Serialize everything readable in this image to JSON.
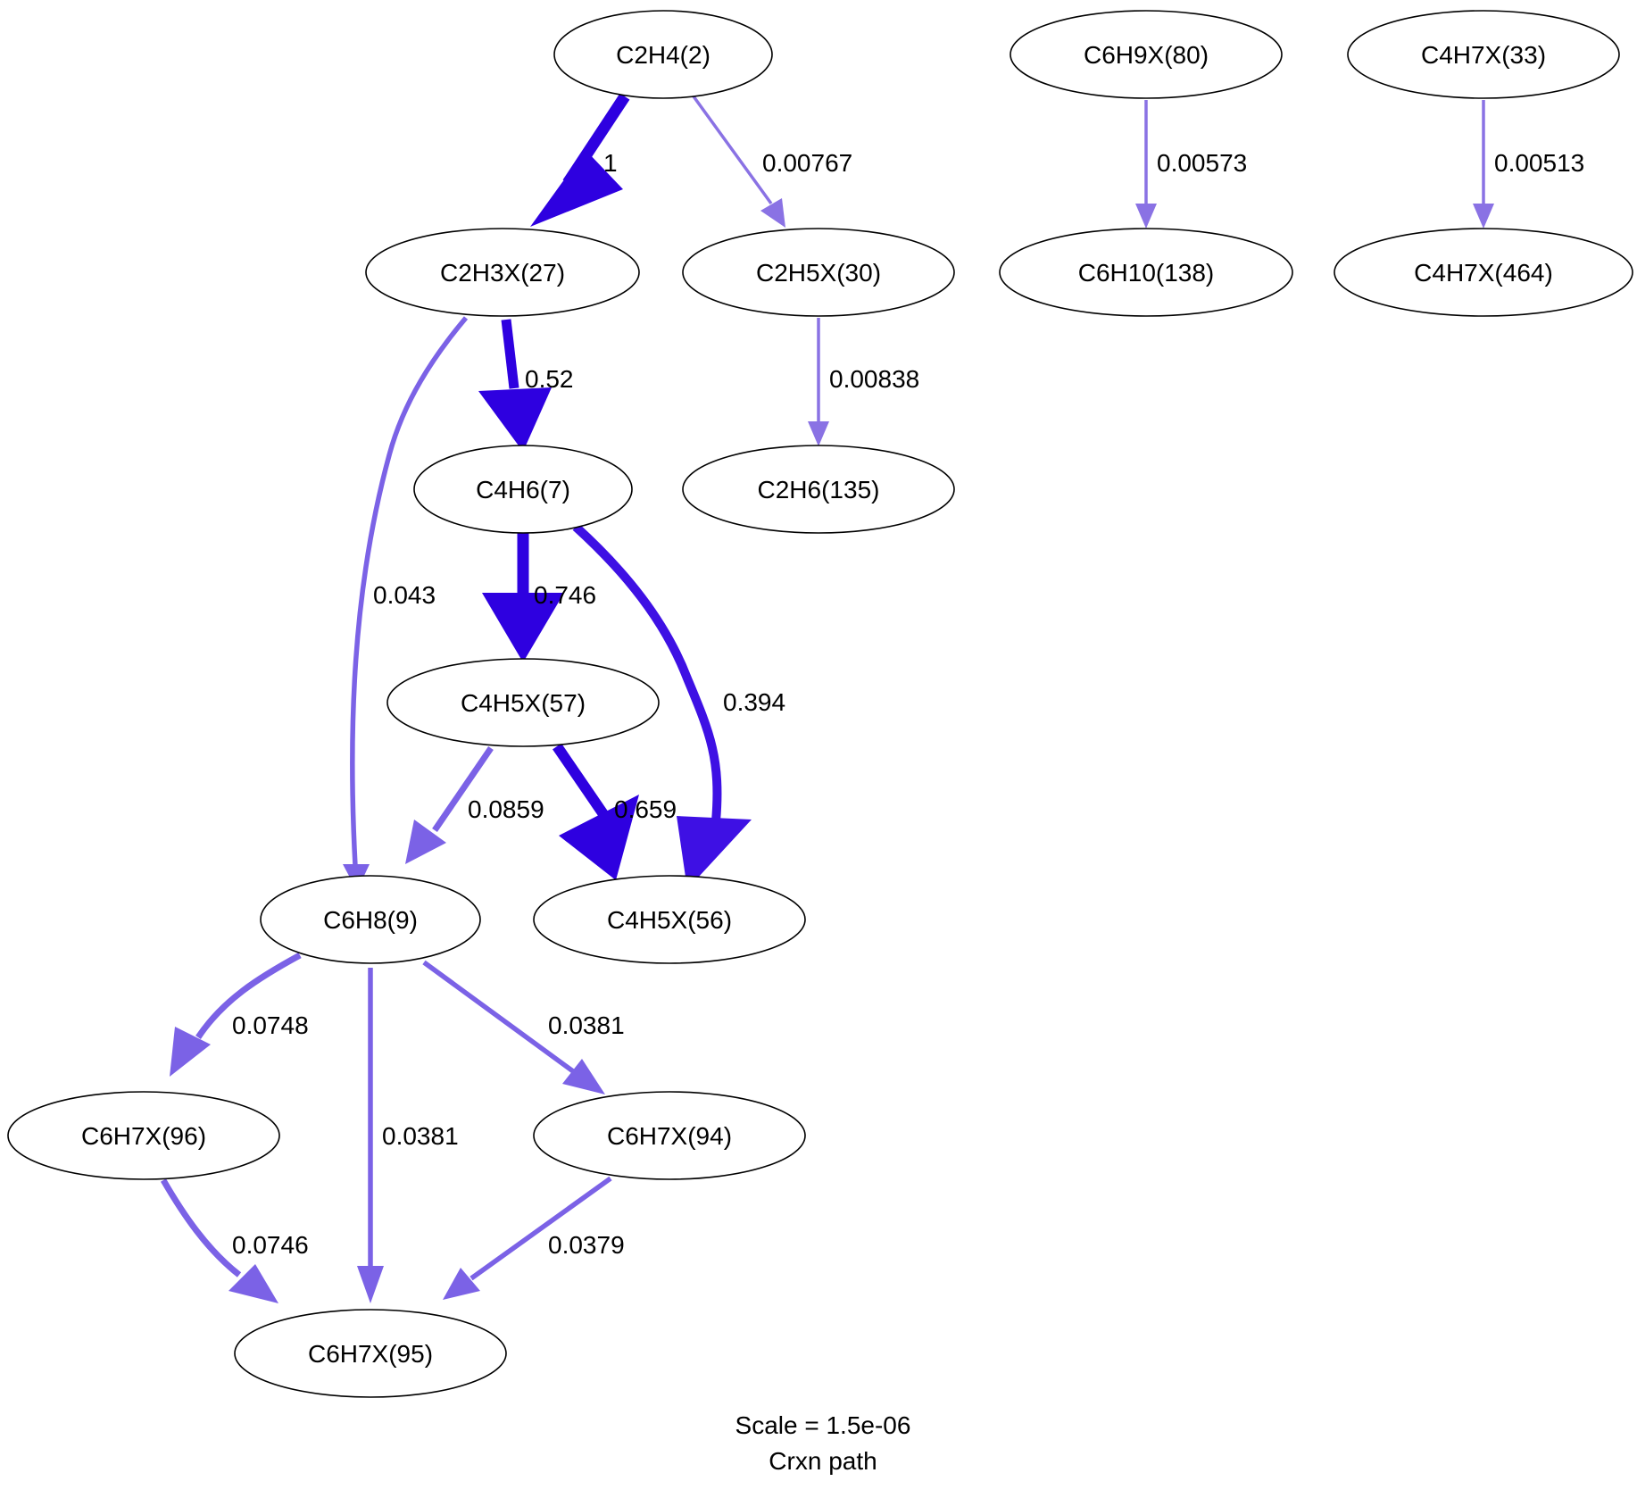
{
  "nodes": {
    "c2h4_2": "C2H4(2)",
    "c6h9x_80": "C6H9X(80)",
    "c4h7x_33": "C4H7X(33)",
    "c2h3x_27": "C2H3X(27)",
    "c2h5x_30": "C2H5X(30)",
    "c6h10_138": "C6H10(138)",
    "c4h7x_464": "C4H7X(464)",
    "c4h6_7": "C4H6(7)",
    "c2h6_135": "C2H6(135)",
    "c4h5x_57": "C4H5X(57)",
    "c6h8_9": "C6H8(9)",
    "c4h5x_56": "C4H5X(56)",
    "c6h7x_96": "C6H7X(96)",
    "c6h7x_94": "C6H7X(94)",
    "c6h7x_95": "C6H7X(95)"
  },
  "edges": [
    {
      "from": "c2h4_2",
      "to": "c2h3x_27",
      "label": "1",
      "flux": 1,
      "color": "#2e00e0"
    },
    {
      "from": "c2h4_2",
      "to": "c2h5x_30",
      "label": "0.00767",
      "flux": 0.00767,
      "color": "#8a72e4"
    },
    {
      "from": "c6h9x_80",
      "to": "c6h10_138",
      "label": "0.00573",
      "flux": 0.00573,
      "color": "#8a72e4"
    },
    {
      "from": "c4h7x_33",
      "to": "c4h7x_464",
      "label": "0.00513",
      "flux": 0.00513,
      "color": "#8a72e4"
    },
    {
      "from": "c2h3x_27",
      "to": "c4h6_7",
      "label": "0.52",
      "flux": 0.52,
      "color": "#2e00e0"
    },
    {
      "from": "c2h3x_27",
      "to": "c6h8_9",
      "label": "0.043",
      "flux": 0.043,
      "color": "#7b62e6"
    },
    {
      "from": "c2h5x_30",
      "to": "c2h6_135",
      "label": "0.00838",
      "flux": 0.00838,
      "color": "#8a72e4"
    },
    {
      "from": "c4h6_7",
      "to": "c4h5x_57",
      "label": "0.746",
      "flux": 0.746,
      "color": "#2e00e0"
    },
    {
      "from": "c4h6_7",
      "to": "c4h5x_56",
      "label": "0.394",
      "flux": 0.394,
      "color": "#3e10e4"
    },
    {
      "from": "c4h5x_57",
      "to": "c6h8_9",
      "label": "0.0859",
      "flux": 0.0859,
      "color": "#7b62e6"
    },
    {
      "from": "c4h5x_57",
      "to": "c4h5x_56",
      "label": "0.659",
      "flux": 0.659,
      "color": "#2e00e0"
    },
    {
      "from": "c6h8_9",
      "to": "c6h7x_96",
      "label": "0.0748",
      "flux": 0.0748,
      "color": "#7b62e6"
    },
    {
      "from": "c6h8_9",
      "to": "c6h7x_95",
      "label": "0.0381",
      "flux": 0.0381,
      "color": "#7b62e6"
    },
    {
      "from": "c6h8_9",
      "to": "c6h7x_94",
      "label": "0.0381",
      "flux": 0.0381,
      "color": "#7b62e6"
    },
    {
      "from": "c6h7x_96",
      "to": "c6h7x_95",
      "label": "0.0746",
      "flux": 0.0746,
      "color": "#7b62e6"
    },
    {
      "from": "c6h7x_94",
      "to": "c6h7x_95",
      "label": "0.0379",
      "flux": 0.0379,
      "color": "#7b62e6"
    }
  ],
  "caption": {
    "scale": "Scale = 1.5e-06",
    "title": "Crxn path"
  }
}
